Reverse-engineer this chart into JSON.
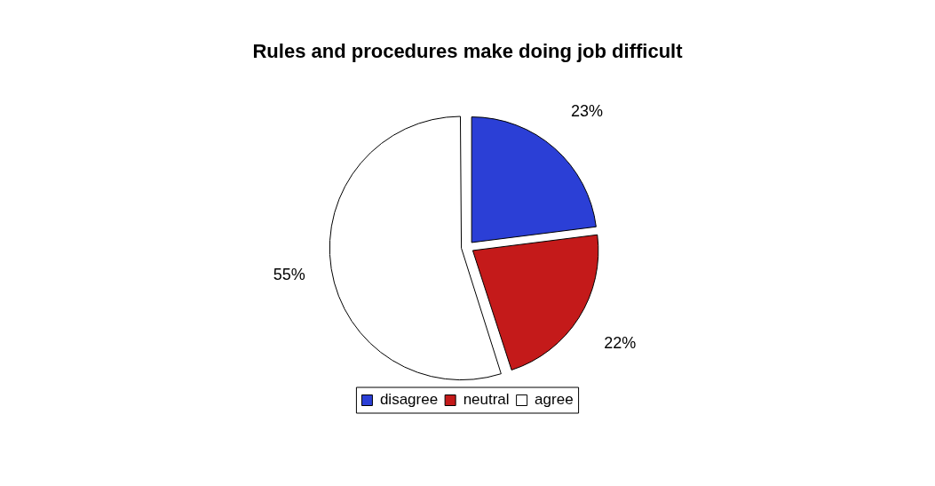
{
  "chart_data": {
    "type": "pie",
    "title": "Rules and procedures make doing job difficult",
    "categories": [
      "disagree",
      "neutral",
      "agree"
    ],
    "values": [
      23,
      22,
      55
    ],
    "value_labels": [
      "23%",
      "22%",
      "55%"
    ],
    "colors": [
      "#2b3fd6",
      "#c41a1a",
      "#ffffff"
    ],
    "legend": "bottom"
  }
}
